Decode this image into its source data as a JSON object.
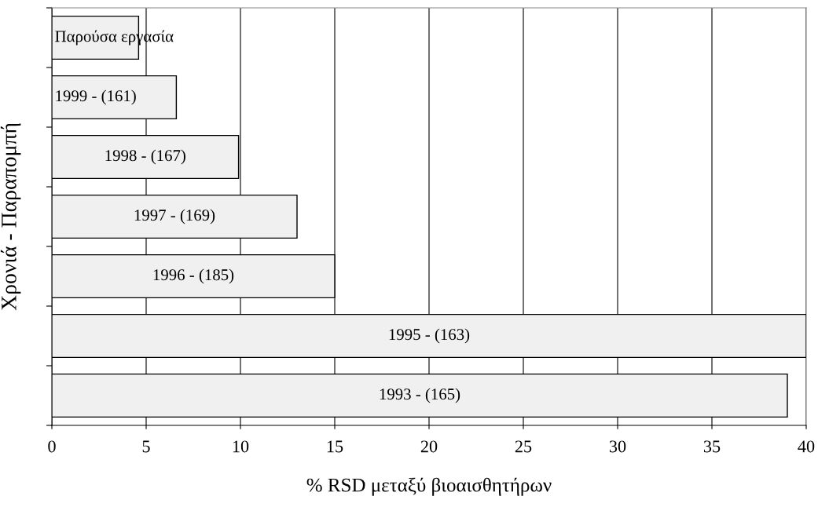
{
  "chart_data": {
    "type": "bar",
    "orientation": "horizontal",
    "categories": [
      "Παρούσα εργασία",
      "1999 - (161)",
      "1998 - (167)",
      "1997 - (169)",
      "1996 - (185)",
      "1995 - (163)",
      "1993 - (165)"
    ],
    "values": [
      4.6,
      6.6,
      9.9,
      13,
      15,
      40,
      39
    ],
    "color": "#f0f0f0",
    "xlabel": "% RSD μεταξύ βιοαισθητήρων",
    "ylabel": "Χρονιά - Παραπομπή",
    "xlim": [
      0,
      40
    ],
    "xticks": [
      0,
      5,
      10,
      15,
      20,
      25,
      30,
      35,
      40
    ],
    "grid": "x",
    "tick_labels": "x",
    "legend": false
  }
}
